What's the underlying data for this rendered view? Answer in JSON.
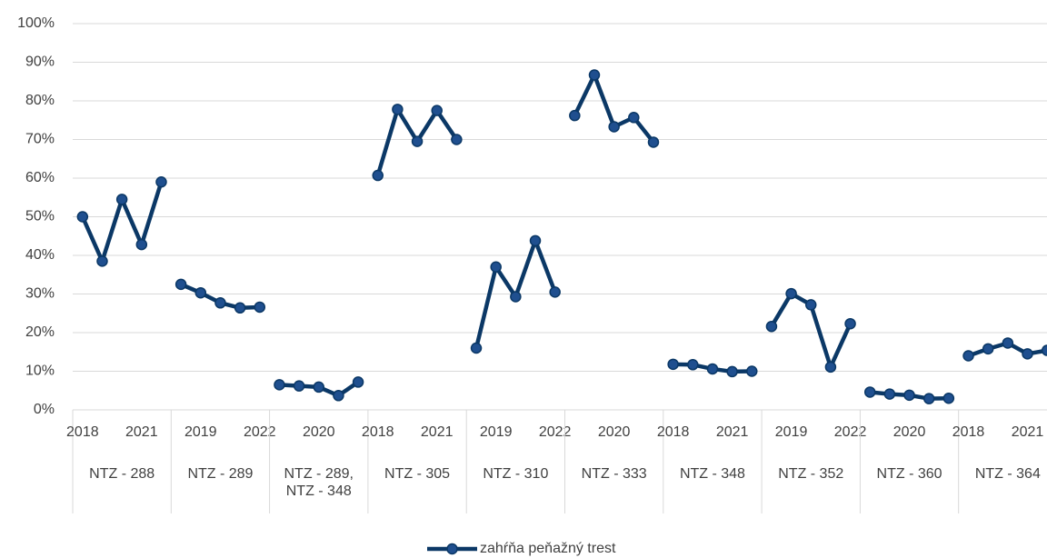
{
  "chart_data": {
    "type": "line",
    "ylim": [
      0,
      100
    ],
    "yticks": [
      {
        "value": 0,
        "label": "0%"
      },
      {
        "value": 10,
        "label": "10%"
      },
      {
        "value": 20,
        "label": "20%"
      },
      {
        "value": 30,
        "label": "30%"
      },
      {
        "value": 40,
        "label": "40%"
      },
      {
        "value": 50,
        "label": "50%"
      },
      {
        "value": 60,
        "label": "60%"
      },
      {
        "value": 70,
        "label": "70%"
      },
      {
        "value": 80,
        "label": "80%"
      },
      {
        "value": 90,
        "label": "90%"
      },
      {
        "value": 100,
        "label": "100%"
      }
    ],
    "grid": true,
    "legend": "bottom",
    "groups": [
      "NTZ - 288",
      "NTZ - 289",
      "NTZ - 289, NTZ - 348",
      "NTZ - 305",
      "NTZ - 310",
      "NTZ - 333",
      "NTZ - 348",
      "NTZ - 352",
      "NTZ - 360",
      "NTZ - 364"
    ],
    "categories": [
      [
        "2018",
        null,
        null,
        "2021",
        null
      ],
      [
        null,
        "2019",
        null,
        null,
        "2022"
      ],
      [
        null,
        null,
        "2020",
        null,
        null
      ],
      [
        "2018",
        null,
        null,
        "2021",
        null
      ],
      [
        null,
        "2019",
        null,
        null,
        "2022"
      ],
      [
        null,
        null,
        "2020",
        null,
        null
      ],
      [
        "2018",
        null,
        null,
        "2021",
        null
      ],
      [
        null,
        "2019",
        null,
        null,
        "2022"
      ],
      [
        null,
        null,
        "2020",
        null,
        null
      ],
      [
        "2018",
        null,
        null,
        "2021",
        null
      ]
    ],
    "series": [
      {
        "name": "zahŕňa peňažný trest",
        "color": "#0b3866",
        "marker_color": "#1f4f8f",
        "values": [
          [
            50,
            38.5,
            54.5,
            42.8,
            59
          ],
          [
            32.5,
            30.3,
            27.7,
            26.4,
            26.6
          ],
          [
            6.5,
            6.2,
            5.9,
            3.7,
            7.2
          ],
          [
            60.7,
            77.8,
            69.5,
            77.5,
            70
          ],
          [
            16,
            37,
            29.3,
            43.8,
            30.5
          ],
          [
            76.2,
            86.7,
            73.3,
            75.7,
            69.3
          ],
          [
            11.8,
            11.7,
            10.6,
            9.9,
            10
          ],
          [
            21.6,
            30.1,
            27.2,
            11.1,
            22.3
          ],
          [
            4.6,
            4.1,
            3.8,
            2.9,
            3
          ],
          [
            14,
            15.8,
            17.3,
            14.5,
            15.4
          ]
        ]
      }
    ]
  }
}
